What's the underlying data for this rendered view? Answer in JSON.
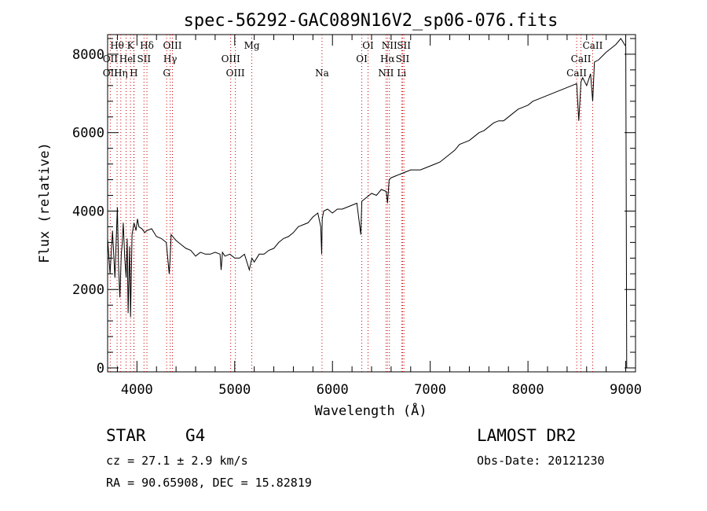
{
  "chart_data": {
    "type": "line",
    "title": "spec-56292-GAC089N16V2_sp06-076.fits",
    "xlabel": "Wavelength (Å)",
    "ylabel": "Flux (relative)",
    "xlim": [
      3700,
      9100
    ],
    "ylim": [
      -100,
      8500
    ],
    "xticks": [
      4000,
      5000,
      6000,
      7000,
      8000,
      9000
    ],
    "yticks": [
      0,
      2000,
      4000,
      6000,
      8000
    ],
    "grid": false,
    "series": [
      {
        "x": [
          3700,
          3725,
          3750,
          3775,
          3800,
          3812,
          3825,
          3840,
          3850,
          3860,
          3875,
          3890,
          3900,
          3910,
          3925,
          3935,
          3950,
          3970,
          3990,
          4005,
          4020,
          4050,
          4080,
          4100,
          4150,
          4200,
          4250,
          4300,
          4330,
          4340,
          4350,
          4400,
          4450,
          4500,
          4550,
          4600,
          4650,
          4700,
          4750,
          4800,
          4850,
          4861,
          4875,
          4900,
          4950,
          5000,
          5050,
          5100,
          5150,
          5175,
          5200,
          5250,
          5300,
          5350,
          5400,
          5450,
          5500,
          5550,
          5600,
          5650,
          5700,
          5750,
          5800,
          5850,
          5880,
          5890,
          5895,
          5910,
          5950,
          6000,
          6050,
          6100,
          6150,
          6200,
          6250,
          6290,
          6300,
          6350,
          6400,
          6450,
          6500,
          6550,
          6563,
          6580,
          6600,
          6650,
          6700,
          6750,
          6800,
          6850,
          6900,
          6950,
          7000,
          7050,
          7100,
          7150,
          7200,
          7250,
          7300,
          7350,
          7400,
          7450,
          7500,
          7550,
          7600,
          7650,
          7700,
          7750,
          7800,
          7850,
          7900,
          7950,
          8000,
          8050,
          8100,
          8150,
          8200,
          8250,
          8300,
          8350,
          8400,
          8450,
          8498,
          8520,
          8542,
          8560,
          8600,
          8640,
          8662,
          8680,
          8720,
          8760,
          8800,
          8850,
          8900,
          8950,
          9000,
          9010
        ],
        "values": [
          3300,
          2400,
          3500,
          2300,
          4100,
          2600,
          1800,
          2900,
          3200,
          3700,
          2800,
          2300,
          3300,
          1400,
          3100,
          1300,
          3400,
          3700,
          3500,
          3800,
          3600,
          3550,
          3450,
          3500,
          3550,
          3350,
          3300,
          3200,
          2400,
          2800,
          3400,
          3250,
          3150,
          3050,
          3000,
          2850,
          2950,
          2900,
          2900,
          2950,
          2900,
          2500,
          2950,
          2850,
          2900,
          2800,
          2800,
          2900,
          2500,
          2800,
          2700,
          2900,
          2900,
          3000,
          3050,
          3200,
          3300,
          3350,
          3450,
          3600,
          3650,
          3700,
          3850,
          3950,
          3600,
          2900,
          3800,
          4000,
          4050,
          3950,
          4050,
          4050,
          4100,
          4150,
          4200,
          3400,
          4250,
          4350,
          4450,
          4400,
          4550,
          4500,
          4200,
          4800,
          4850,
          4900,
          4950,
          5000,
          5050,
          5050,
          5050,
          5100,
          5150,
          5200,
          5250,
          5350,
          5450,
          5550,
          5700,
          5750,
          5800,
          5900,
          6000,
          6050,
          6150,
          6250,
          6300,
          6300,
          6400,
          6500,
          6600,
          6650,
          6700,
          6800,
          6850,
          6900,
          6950,
          7000,
          7050,
          7100,
          7150,
          7200,
          7250,
          6300,
          7300,
          7400,
          7200,
          7500,
          6800,
          7800,
          7850,
          7950,
          8050,
          8150,
          8250,
          8400,
          8200,
          0
        ]
      }
    ],
    "line_labels": [
      {
        "name": "Hθ",
        "x": 3797,
        "row": 1
      },
      {
        "name": "K",
        "x": 3934,
        "row": 1
      },
      {
        "name": "Hδ",
        "x": 4102,
        "row": 1
      },
      {
        "name": "OIII",
        "x": 4363,
        "row": 1
      },
      {
        "name": "Mg",
        "x": 5175,
        "row": 1
      },
      {
        "name": "OI",
        "x": 6364,
        "row": 1
      },
      {
        "name": "NII",
        "x": 6583,
        "row": 1
      },
      {
        "name": "SII",
        "x": 6731,
        "row": 1
      },
      {
        "name": "CaII",
        "x": 8662,
        "row": 1
      },
      {
        "name": "OII",
        "x": 3727,
        "row": 2
      },
      {
        "name": "He",
        "x": 3889,
        "row": 2
      },
      {
        "name": "I",
        "x": 3970,
        "row": 2
      },
      {
        "name": "SII",
        "x": 4072,
        "row": 2
      },
      {
        "name": "Hγ",
        "x": 4340,
        "row": 2
      },
      {
        "name": "OIII",
        "x": 4959,
        "row": 2
      },
      {
        "name": "OI",
        "x": 6300,
        "row": 2
      },
      {
        "name": "Hα",
        "x": 6563,
        "row": 2
      },
      {
        "name": "SII",
        "x": 6717,
        "row": 2
      },
      {
        "name": "CaII",
        "x": 8542,
        "row": 2
      },
      {
        "name": "OII",
        "x": 3727,
        "row": 3
      },
      {
        "name": "Hη",
        "x": 3835,
        "row": 3
      },
      {
        "name": "H",
        "x": 3968,
        "row": 3
      },
      {
        "name": "G",
        "x": 4304,
        "row": 3
      },
      {
        "name": "OIII",
        "x": 5007,
        "row": 3
      },
      {
        "name": "Na",
        "x": 5893,
        "row": 3
      },
      {
        "name": "NII",
        "x": 6548,
        "row": 3
      },
      {
        "name": "Li",
        "x": 6708,
        "row": 3
      },
      {
        "name": "CaII",
        "x": 8498,
        "row": 3
      }
    ],
    "line_marker_color": "#cc0000"
  },
  "info": {
    "class_label": "STAR",
    "subclass": "G4",
    "survey": "LAMOST DR2",
    "cz_text": "cz = 27.1 ± 2.9 km/s",
    "obs_date": "Obs-Date: 20121230",
    "coords": "RA =  90.65908, DEC =  15.82819"
  }
}
